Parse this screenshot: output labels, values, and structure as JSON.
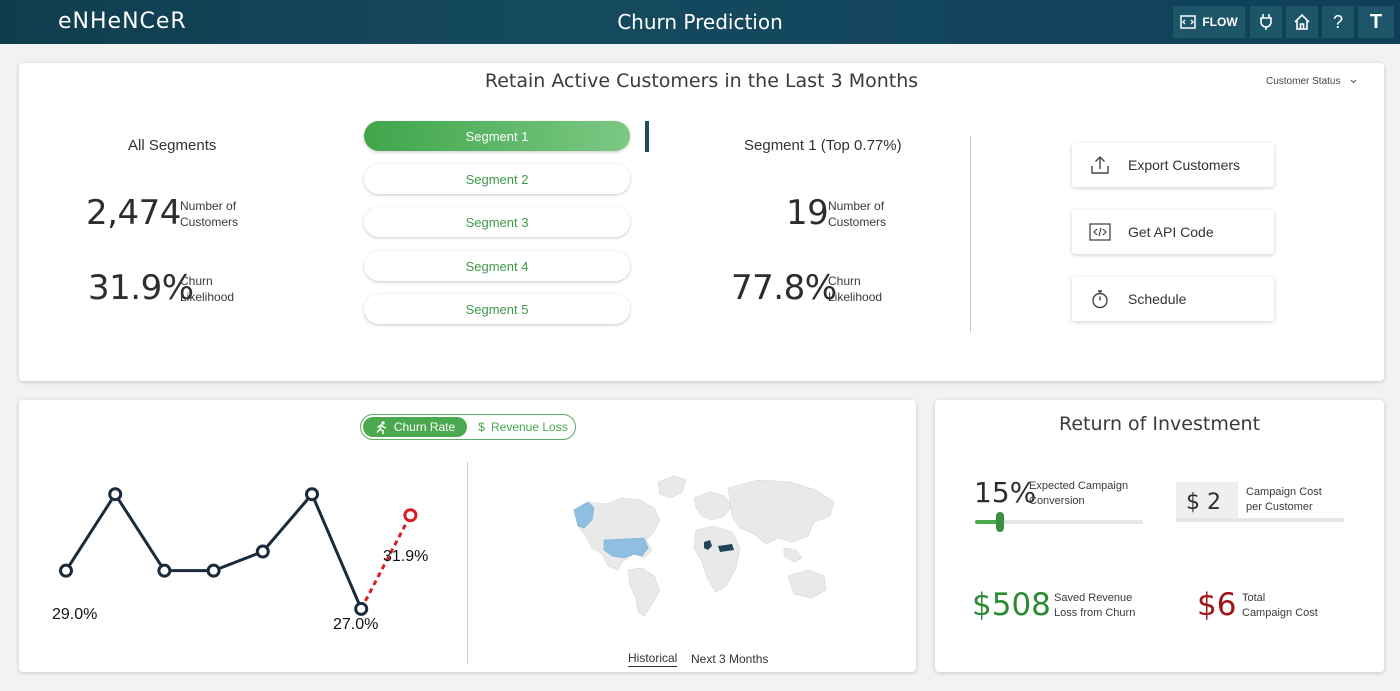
{
  "header": {
    "brand": "eNHeNCeR",
    "title": "Churn Prediction",
    "flow_label": "FLOW",
    "avatar_letter": "T"
  },
  "top": {
    "title": "Retain Active Customers in the Last 3 Months",
    "filter_label": "Customer Status",
    "all_segments": {
      "heading": "All Segments",
      "customers_value": "2,474",
      "customers_label_1": "Number of",
      "customers_label_2": "Customers",
      "churn_value": "31.9%",
      "churn_label_1": "Churn",
      "churn_label_2": "Likelihood"
    },
    "segments": [
      "Segment 1",
      "Segment 2",
      "Segment 3",
      "Segment 4",
      "Segment 5"
    ],
    "selected_segment": {
      "heading": "Segment 1 (Top 0.77%)",
      "customers_value": "19",
      "customers_label_1": "Number of",
      "customers_label_2": "Customers",
      "churn_value": "77.8%",
      "churn_label_1": "Churn",
      "churn_label_2": "Likelihood"
    },
    "actions": {
      "export": "Export Customers",
      "api": "Get API Code",
      "schedule": "Schedule"
    }
  },
  "chart": {
    "toggle_on": "Churn Rate",
    "toggle_off": "Revenue Loss",
    "labels": {
      "first": "29.0%",
      "low": "27.0%",
      "last": "31.9%"
    },
    "map_tabs": {
      "historical": "Historical",
      "next": "Next 3 Months"
    }
  },
  "chart_data": {
    "type": "line",
    "series": [
      {
        "values": [
          29.0,
          33.0,
          29.0,
          29.0,
          30.0,
          33.0,
          27.0
        ]
      },
      {
        "values": [
          27.0,
          31.9
        ]
      }
    ],
    "ylim": [
      26,
      35
    ]
  },
  "roi": {
    "title": "Return of Investment",
    "conversion_value": "15%",
    "conversion_label_1": "Expected Campaign",
    "conversion_label_2": "Conversion",
    "conversion_fraction": 0.15,
    "cost_value": "$ 2",
    "cost_label_1": "Campaign Cost",
    "cost_label_2": "per Customer",
    "saved_value": "$508",
    "saved_label_1": "Saved Revenue",
    "saved_label_2": "Loss from Churn",
    "total_value": "$6",
    "total_label_1": "Total",
    "total_label_2": "Campaign Cost"
  },
  "colors": {
    "accent": "#4aa84f",
    "header": "#0f3d4e",
    "negative": "#a3141a",
    "positive": "#2a8a36"
  }
}
